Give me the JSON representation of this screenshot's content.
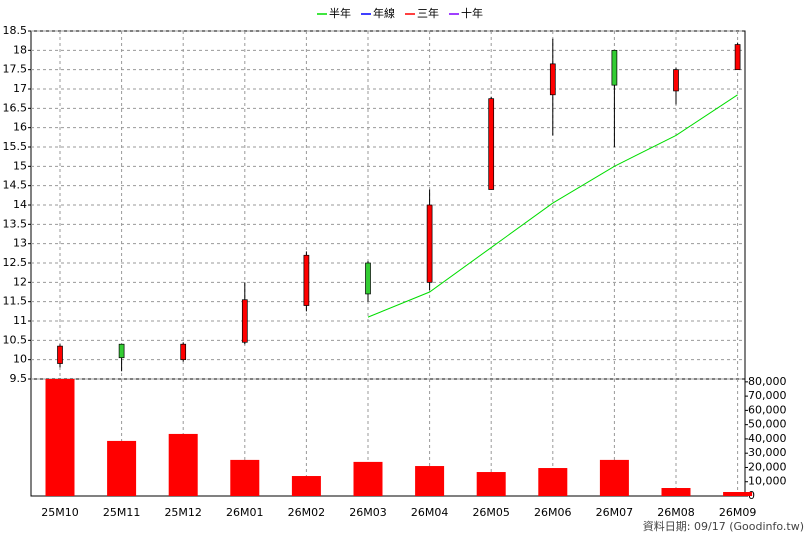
{
  "chart_data": [
    {
      "type": "candlestick",
      "categories": [
        "25M10",
        "25M11",
        "25M12",
        "26M01",
        "26M02",
        "26M03",
        "26M04",
        "26M05",
        "26M06",
        "26M07",
        "26M08",
        "26M09"
      ],
      "open": [
        9.9,
        10.4,
        10.0,
        10.45,
        11.4,
        12.5,
        12.0,
        14.4,
        16.85,
        18.0,
        16.95,
        17.5
      ],
      "high": [
        10.4,
        10.4,
        10.45,
        12.0,
        12.8,
        12.55,
        14.4,
        16.8,
        18.3,
        18.0,
        17.55,
        18.2
      ],
      "low": [
        9.8,
        9.7,
        9.95,
        10.4,
        11.25,
        11.5,
        11.8,
        14.4,
        15.8,
        15.5,
        16.6,
        17.5
      ],
      "close": [
        10.35,
        10.05,
        10.4,
        11.55,
        12.7,
        11.7,
        14.0,
        16.75,
        17.65,
        17.1,
        17.5,
        18.15
      ],
      "up_color": "#ff0000",
      "down_color": "#33cc33",
      "series": [
        {
          "name": "半年",
          "color": "#00dd00",
          "values": [
            null,
            null,
            null,
            null,
            null,
            11.1,
            11.75,
            12.9,
            14.05,
            15.0,
            15.8,
            16.85
          ]
        },
        {
          "name": "年線",
          "color": "#0000ff",
          "values": [
            null,
            null,
            null,
            null,
            null,
            null,
            null,
            null,
            null,
            null,
            null,
            null
          ]
        },
        {
          "name": "三年",
          "color": "#ff0000",
          "values": [
            null,
            null,
            null,
            null,
            null,
            null,
            null,
            null,
            null,
            null,
            null,
            null
          ]
        },
        {
          "name": "十年",
          "color": "#8000ff",
          "values": [
            null,
            null,
            null,
            null,
            null,
            null,
            null,
            null,
            null,
            null,
            null,
            null
          ]
        }
      ],
      "ylim": [
        9.5,
        18.5
      ],
      "yticks": [
        9.5,
        10,
        10.5,
        11,
        11.5,
        12,
        12.5,
        13,
        13.5,
        14,
        14.5,
        15,
        15.5,
        16,
        16.5,
        17,
        17.5,
        18,
        18.5
      ],
      "grid": true
    },
    {
      "type": "bar",
      "values": [
        82000,
        38600,
        43500,
        25300,
        14000,
        23900,
        21000,
        16800,
        19600,
        25300,
        5600,
        2800
      ],
      "color": "#ff0000",
      "ylim": [
        0,
        82000
      ],
      "yticks": [
        0,
        {
          "value": 10000,
          "label": "10,000"
        },
        {
          "value": 20000,
          "label": "20,000"
        },
        {
          "value": 30000,
          "label": "30,000"
        },
        {
          "value": 40000,
          "label": "40,000"
        },
        {
          "value": 50000,
          "label": "50,000"
        },
        {
          "value": 60000,
          "label": "60,000"
        },
        {
          "value": 70000,
          "label": "70,000"
        },
        {
          "value": 80000,
          "label": "80,000"
        }
      ],
      "grid": true
    }
  ],
  "footer": "資料日期: 09/17 (Goodinfo.tw)"
}
